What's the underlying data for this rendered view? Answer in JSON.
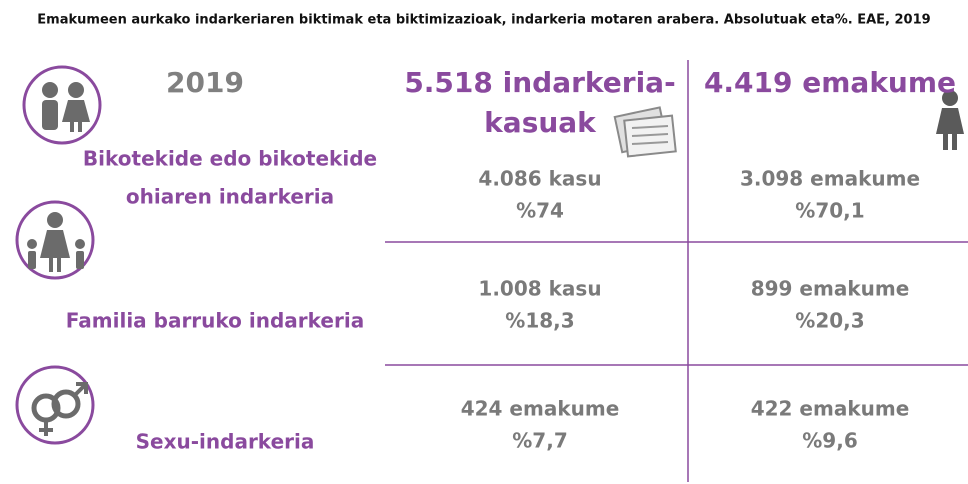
{
  "title": "Emakumeen aurkako indarkeriaren biktimak eta biktimizazioak, indarkeria motaren arabera. Absolutuak eta%. EAE, 2019",
  "year": "2019",
  "columns": [
    {
      "lines": [
        "5.518 indarkeria-",
        "kasuak"
      ]
    },
    {
      "lines": [
        "4.419 emakume"
      ]
    }
  ],
  "rows": [
    {
      "label": [
        "Bikotekide edo bikotekide",
        "ohiaren indarkeria"
      ],
      "cells": [
        [
          "4.086 kasu",
          "%74"
        ],
        [
          "3.098 emakume",
          "%70,1"
        ]
      ]
    },
    {
      "label": [
        "Familia barruko indarkeria"
      ],
      "cells": [
        [
          "1.008 kasu",
          "%18,3"
        ],
        [
          "899 emakume",
          "%20,3"
        ]
      ]
    },
    {
      "label": [
        "Sexu-indarkeria"
      ],
      "cells": [
        [
          "424 emakume",
          "%7,7"
        ],
        [
          "422 emakume",
          "%9,6"
        ]
      ]
    }
  ]
}
